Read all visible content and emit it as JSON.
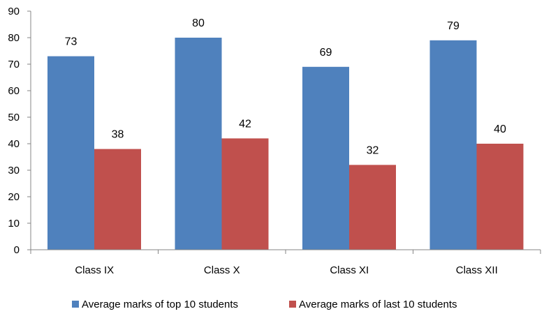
{
  "chart_data": {
    "type": "bar",
    "categories": [
      "Class IX",
      "Class X",
      "Class XI",
      "Class XII"
    ],
    "series": [
      {
        "name": "Average marks of top 10 students",
        "values": [
          73,
          80,
          69,
          79
        ],
        "color": "#4F81BD"
      },
      {
        "name": "Average marks of last 10 students",
        "values": [
          38,
          42,
          32,
          40
        ],
        "color": "#C0504D"
      }
    ],
    "yticks": [
      "0",
      "10",
      "20",
      "30",
      "40",
      "50",
      "60",
      "70",
      "80",
      "90"
    ],
    "ylim": [
      0,
      90
    ],
    "title": "",
    "xlabel": "",
    "ylabel": "",
    "grid": false,
    "data_labels": true,
    "legend_position": "bottom"
  }
}
